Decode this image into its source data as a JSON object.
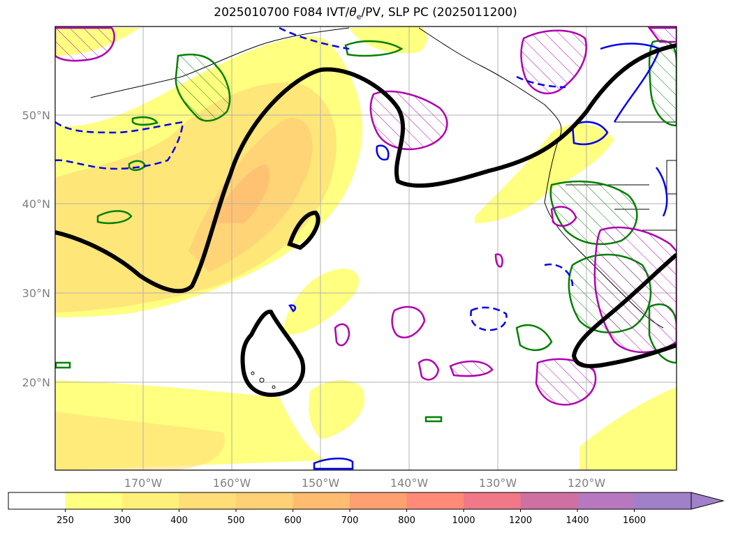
{
  "title_prefix": "2025010700 F084 IVT/",
  "title_theta": "θ",
  "title_sub": "e",
  "title_suffix": "/PV, SLP PC (2025011200)",
  "lat_labels": [
    "50°N",
    "40°N",
    "30°N",
    "20°N"
  ],
  "lon_labels": [
    "170°W",
    "160°W",
    "150°W",
    "140°W",
    "130°W",
    "120°W"
  ],
  "colorbar": {
    "ticks": [
      "250",
      "300",
      "400",
      "500",
      "600",
      "700",
      "800",
      "1000",
      "1200",
      "1400",
      "1600"
    ],
    "colors": [
      "#ffffff",
      "#ffff80",
      "#fff07a",
      "#ffdd77",
      "#ffd075",
      "#ffbb70",
      "#ffa070",
      "#ff8a78",
      "#f07888",
      "#d070a0",
      "#b878c0",
      "#a080c8"
    ],
    "extend": "max"
  },
  "legend": {
    "ivt": "filled contours yellow-orange-purple",
    "slp_pc": "thick black contour",
    "pv": "green contours with hatching",
    "theta_e_positive": "magenta contours with hatching",
    "theta_e_negative": "blue contours, dashed"
  }
}
